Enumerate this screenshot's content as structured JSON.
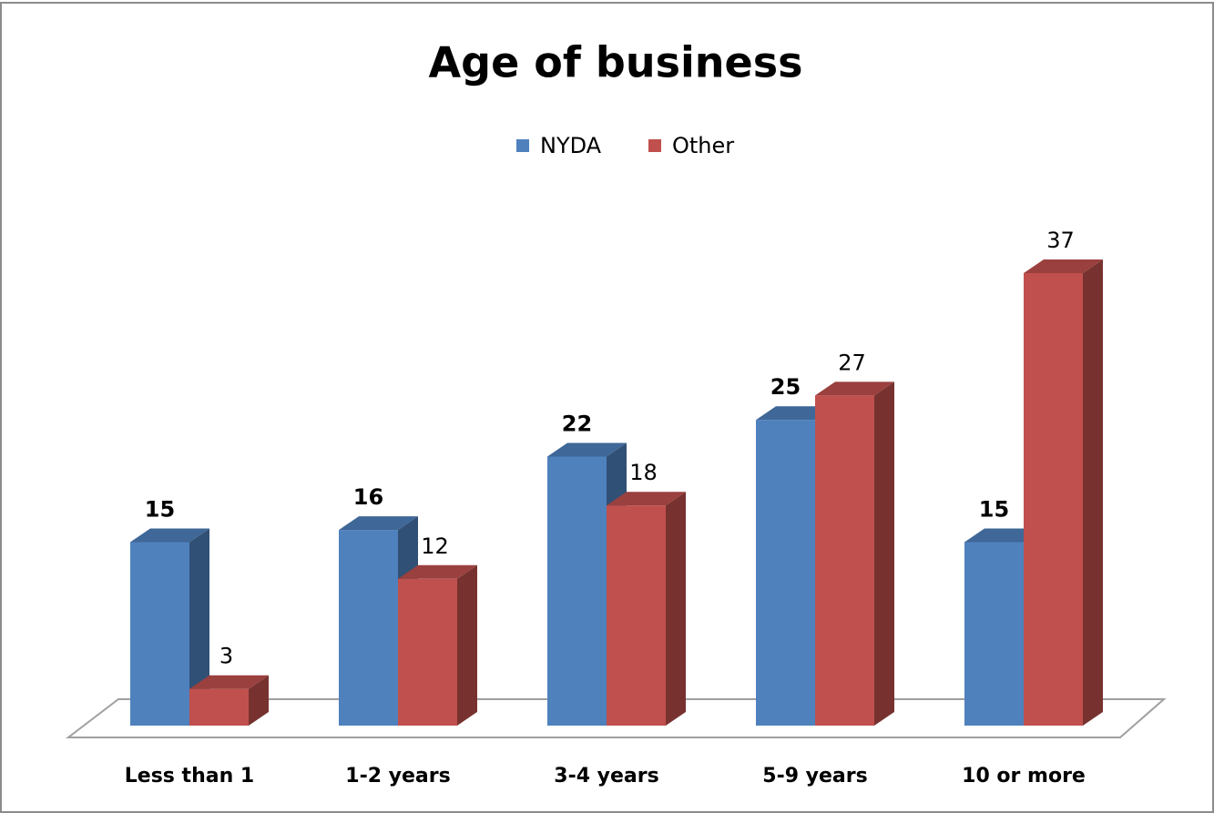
{
  "chart_data": {
    "type": "bar3d",
    "title": "Age of business",
    "categories": [
      "Less than 1",
      "1-2 years",
      "3-4 years",
      "5-9 years",
      "10 or more"
    ],
    "series": [
      {
        "name": "NYDA",
        "color": "#4f81bd",
        "values": [
          15,
          16,
          22,
          25,
          15
        ]
      },
      {
        "name": "Other",
        "color": "#c0504d",
        "values": [
          3,
          12,
          18,
          27,
          37
        ]
      }
    ],
    "legend": "top"
  }
}
